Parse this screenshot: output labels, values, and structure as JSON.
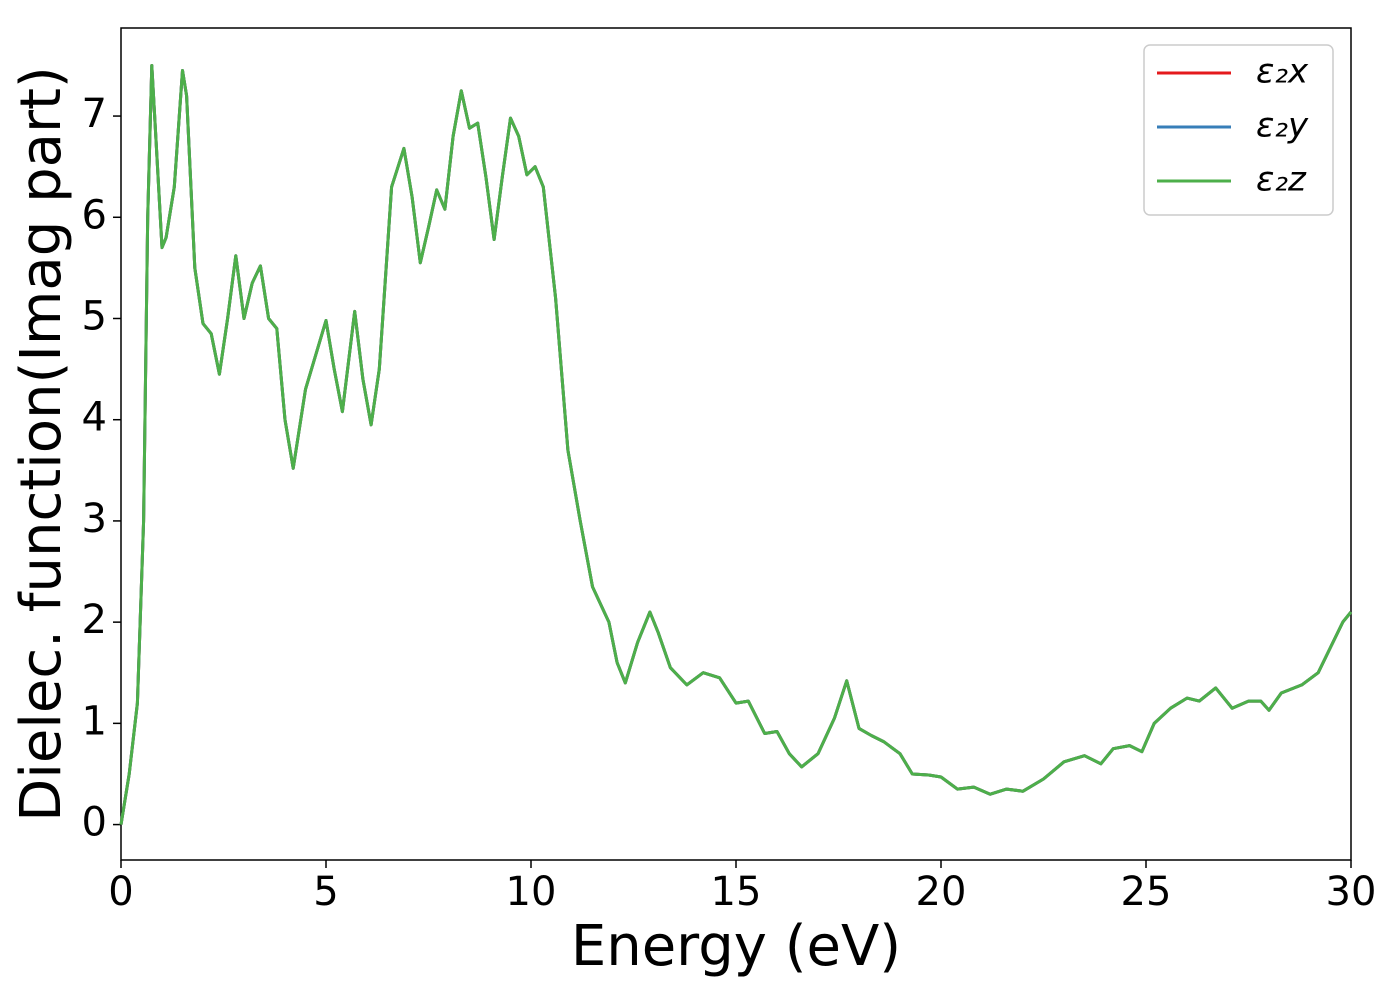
{
  "chart_data": {
    "type": "line",
    "xlabel": "Energy (eV)",
    "ylabel": "Dielec. function(Imag part)",
    "xlim": [
      0,
      30
    ],
    "ylim": [
      -0.35,
      7.87
    ],
    "xticks": [
      0,
      5,
      10,
      15,
      20,
      25,
      30
    ],
    "yticks": [
      0,
      1,
      2,
      3,
      4,
      5,
      6,
      7
    ],
    "legend": "upper right",
    "x": [
      0,
      0.2,
      0.4,
      0.55,
      0.65,
      0.75,
      0.85,
      1.0,
      1.1,
      1.3,
      1.5,
      1.6,
      1.8,
      2.0,
      2.2,
      2.4,
      2.6,
      2.8,
      3.0,
      3.2,
      3.4,
      3.6,
      3.8,
      4.0,
      4.2,
      4.5,
      5.0,
      5.2,
      5.4,
      5.7,
      5.9,
      6.1,
      6.3,
      6.6,
      6.9,
      7.1,
      7.3,
      7.5,
      7.7,
      7.9,
      8.1,
      8.3,
      8.5,
      8.7,
      8.9,
      9.1,
      9.3,
      9.5,
      9.7,
      9.9,
      10.1,
      10.3,
      10.6,
      10.9,
      11.2,
      11.5,
      11.9,
      12.1,
      12.3,
      12.6,
      12.9,
      13.1,
      13.4,
      13.8,
      14.2,
      14.6,
      15.0,
      15.3,
      15.7,
      16.0,
      16.3,
      16.6,
      17.0,
      17.4,
      17.7,
      18.0,
      18.3,
      18.6,
      19.0,
      19.3,
      19.7,
      20.0,
      20.4,
      20.8,
      21.2,
      21.6,
      22.0,
      22.5,
      23.0,
      23.5,
      23.9,
      24.2,
      24.6,
      24.9,
      25.2,
      25.6,
      26.0,
      26.3,
      26.7,
      27.1,
      27.5,
      27.8,
      28.0,
      28.3,
      28.8,
      29.2,
      29.5,
      29.8,
      30.0
    ],
    "series": [
      {
        "name": "ε₂x",
        "color": "#e41a1c",
        "values": [
          0,
          0.5,
          1.2,
          3.0,
          6.0,
          7.5,
          6.8,
          5.7,
          5.8,
          6.3,
          7.45,
          7.2,
          5.5,
          4.95,
          4.85,
          4.45,
          5.0,
          5.62,
          5.0,
          5.35,
          5.52,
          5.0,
          4.9,
          4.0,
          3.52,
          4.3,
          4.98,
          4.5,
          4.08,
          5.07,
          4.4,
          3.95,
          4.5,
          6.3,
          6.68,
          6.2,
          5.55,
          5.9,
          6.27,
          6.08,
          6.8,
          7.25,
          6.88,
          6.93,
          6.4,
          5.78,
          6.4,
          6.98,
          6.8,
          6.42,
          6.5,
          6.3,
          5.2,
          3.7,
          3.0,
          2.35,
          2.0,
          1.6,
          1.4,
          1.8,
          2.1,
          1.9,
          1.55,
          1.38,
          1.5,
          1.45,
          1.2,
          1.22,
          0.9,
          0.92,
          0.7,
          0.57,
          0.7,
          1.05,
          1.42,
          0.95,
          0.88,
          0.82,
          0.7,
          0.5,
          0.49,
          0.47,
          0.35,
          0.37,
          0.3,
          0.35,
          0.33,
          0.45,
          0.62,
          0.68,
          0.6,
          0.75,
          0.78,
          0.72,
          1.0,
          1.15,
          1.25,
          1.22,
          1.35,
          1.15,
          1.22,
          1.22,
          1.13,
          1.3,
          1.38,
          1.5,
          1.75,
          2.0,
          2.1
        ]
      },
      {
        "name": "ε₂y",
        "color": "#377eb8",
        "values": [
          0,
          0.5,
          1.2,
          3.0,
          6.0,
          7.5,
          6.8,
          5.7,
          5.8,
          6.3,
          7.45,
          7.2,
          5.5,
          4.95,
          4.85,
          4.45,
          5.0,
          5.62,
          5.0,
          5.35,
          5.52,
          5.0,
          4.9,
          4.0,
          3.52,
          4.3,
          4.98,
          4.5,
          4.08,
          5.07,
          4.4,
          3.95,
          4.5,
          6.3,
          6.68,
          6.2,
          5.55,
          5.9,
          6.27,
          6.08,
          6.8,
          7.25,
          6.88,
          6.93,
          6.4,
          5.78,
          6.4,
          6.98,
          6.8,
          6.42,
          6.5,
          6.3,
          5.2,
          3.7,
          3.0,
          2.35,
          2.0,
          1.6,
          1.4,
          1.8,
          2.1,
          1.9,
          1.55,
          1.38,
          1.5,
          1.45,
          1.2,
          1.22,
          0.9,
          0.92,
          0.7,
          0.57,
          0.7,
          1.05,
          1.42,
          0.95,
          0.88,
          0.82,
          0.7,
          0.5,
          0.49,
          0.47,
          0.35,
          0.37,
          0.3,
          0.35,
          0.33,
          0.45,
          0.62,
          0.68,
          0.6,
          0.75,
          0.78,
          0.72,
          1.0,
          1.15,
          1.25,
          1.22,
          1.35,
          1.15,
          1.22,
          1.22,
          1.13,
          1.3,
          1.38,
          1.5,
          1.75,
          2.0,
          2.1
        ]
      },
      {
        "name": "ε₂z",
        "color": "#4daf4a",
        "values": [
          0,
          0.5,
          1.2,
          3.0,
          6.0,
          7.5,
          6.8,
          5.7,
          5.8,
          6.3,
          7.45,
          7.2,
          5.5,
          4.95,
          4.85,
          4.45,
          5.0,
          5.62,
          5.0,
          5.35,
          5.52,
          5.0,
          4.9,
          4.0,
          3.52,
          4.3,
          4.98,
          4.5,
          4.08,
          5.07,
          4.4,
          3.95,
          4.5,
          6.3,
          6.68,
          6.2,
          5.55,
          5.9,
          6.27,
          6.08,
          6.8,
          7.25,
          6.88,
          6.93,
          6.4,
          5.78,
          6.4,
          6.98,
          6.8,
          6.42,
          6.5,
          6.3,
          5.2,
          3.7,
          3.0,
          2.35,
          2.0,
          1.6,
          1.4,
          1.8,
          2.1,
          1.9,
          1.55,
          1.38,
          1.5,
          1.45,
          1.2,
          1.22,
          0.9,
          0.92,
          0.7,
          0.57,
          0.7,
          1.05,
          1.42,
          0.95,
          0.88,
          0.82,
          0.7,
          0.5,
          0.49,
          0.47,
          0.35,
          0.37,
          0.3,
          0.35,
          0.33,
          0.45,
          0.62,
          0.68,
          0.6,
          0.75,
          0.78,
          0.72,
          1.0,
          1.15,
          1.25,
          1.22,
          1.35,
          1.15,
          1.22,
          1.22,
          1.13,
          1.3,
          1.38,
          1.5,
          1.75,
          2.0,
          2.1
        ]
      }
    ]
  }
}
